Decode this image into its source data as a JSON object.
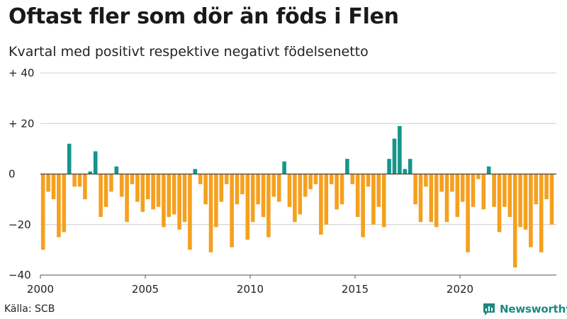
{
  "title": "Oftast fler som dör än föds i Flen",
  "subtitle": "Kvartal med positivt respektive negativt födelsenetto",
  "source": "Källa: SCB",
  "brand": "Newsworthy",
  "colors": {
    "positive": "#15968a",
    "negative": "#f5a01e",
    "grid": "#cccccc",
    "zero": "#444444",
    "brand": "#1a8a80"
  },
  "chart_data": {
    "type": "bar",
    "title": "Oftast fler som dör än föds i Flen",
    "subtitle": "Kvartal med positivt respektive negativt födelsenetto",
    "xlabel": "",
    "ylabel": "",
    "start_year": 2000,
    "periods_per_year": 4,
    "ylim": [
      -40,
      40
    ],
    "y_ticks": [
      40,
      20,
      0,
      -20,
      -40
    ],
    "y_tick_labels": [
      "+ 40",
      "+ 20",
      "0",
      "−20",
      "−40"
    ],
    "x_ticks": [
      2000,
      2005,
      2010,
      2015,
      2020
    ],
    "x_tick_labels": [
      "2000",
      "2005",
      "2010",
      "2015",
      "2020"
    ],
    "values": [
      -30,
      -7,
      -10,
      -25,
      -23,
      12,
      -5,
      -5,
      -10,
      1,
      9,
      -17,
      -13,
      -7,
      3,
      -9,
      -19,
      -4,
      -11,
      -15,
      -10,
      -14,
      -13,
      -21,
      -17,
      -16,
      -22,
      -19,
      -30,
      2,
      -4,
      -12,
      -31,
      -21,
      -11,
      -4,
      -29,
      -12,
      -8,
      -26,
      -19,
      -12,
      -17,
      -25,
      -9,
      -11,
      5,
      -13,
      -19,
      -16,
      -9,
      -6,
      -4,
      -24,
      -20,
      -4,
      -14,
      -12,
      6,
      -4,
      -17,
      -25,
      -5,
      -20,
      -13,
      -21,
      6,
      14,
      19,
      2,
      6,
      -12,
      -19,
      -5,
      -19,
      -21,
      -7,
      -19,
      -7,
      -17,
      -11,
      -31,
      -13,
      -2,
      -14,
      3,
      -13,
      -23,
      -13,
      -17,
      -37,
      -21,
      -22,
      -29,
      -12,
      -31,
      -10,
      -20
    ]
  }
}
